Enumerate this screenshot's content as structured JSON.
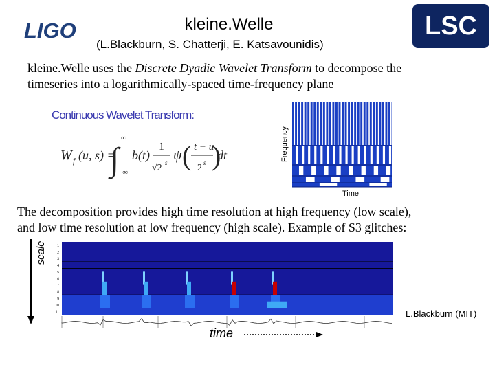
{
  "header": {
    "title": "kleine.Welle",
    "authors": "(L.Blackburn, S. Chatterji, E. Katsavounidis)",
    "left_logo": "LIGO",
    "right_logo": "LSC"
  },
  "intro": {
    "before": "kleine.Welle uses the ",
    "emphasis": "Discrete Dyadic Wavelet Transform",
    "after": " to decompose the",
    "line2": "timeseries into a logarithmically-spaced time-frequency plane"
  },
  "equation": {
    "heading": "Continuous Wavelet Transform:",
    "parts": [
      "W",
      "f",
      "(u, s) =",
      "∞",
      "−∞",
      "b(t)",
      "1",
      "√2",
      "s",
      "ψ",
      "t − u",
      "2",
      "s",
      "dt"
    ]
  },
  "tiling": {
    "y_label": "Frequency",
    "x_label": "Time"
  },
  "body": {
    "line1": "The decomposition provides high time resolution at high frequency (low scale),",
    "line2": "and low time resolution at low frequency (high scale). Example of S3 glitches:"
  },
  "spectrogram": {
    "y_label": "scale",
    "x_label": "time",
    "credit": "L.Blackburn (MIT)",
    "scale_ticks": [
      1,
      2,
      3,
      4,
      5,
      6,
      7,
      8,
      9,
      10,
      11
    ]
  }
}
